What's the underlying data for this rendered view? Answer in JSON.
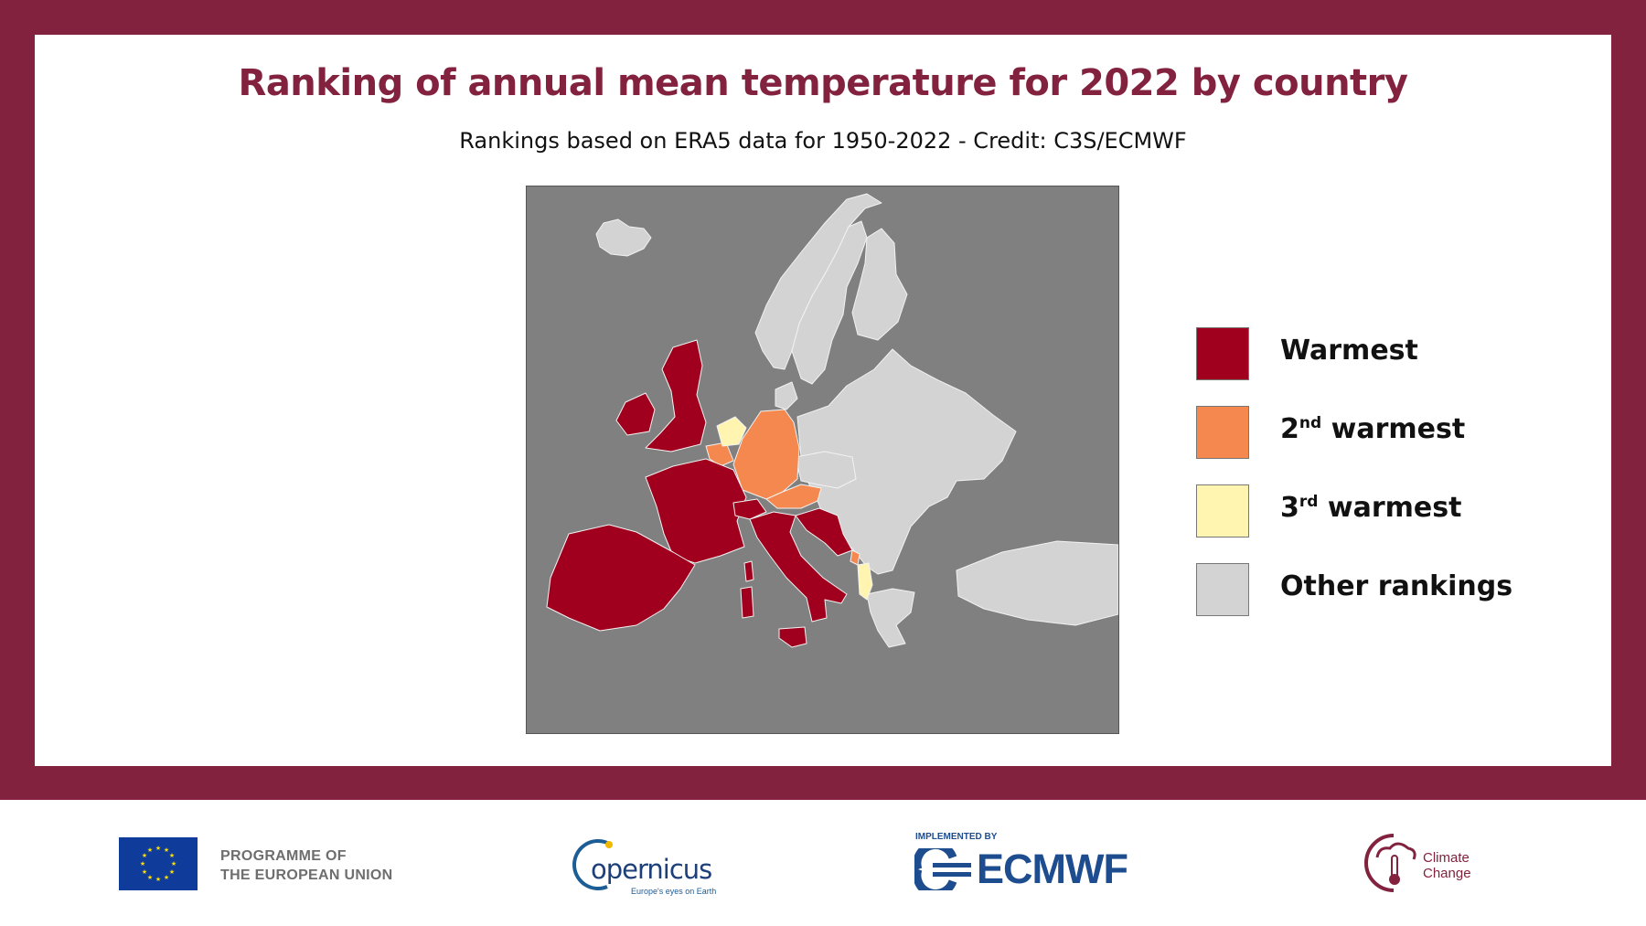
{
  "header": {
    "title": "Ranking of annual mean temperature for 2022 by country",
    "subtitle": "Rankings based on ERA5 data for 1950-2022 - Credit: C3S/ECMWF"
  },
  "map": {
    "region": "Europe",
    "sea_color": "#808080",
    "border_color": "#f2f2f2",
    "categories": {
      "warmest": {
        "color": "#a0001e",
        "countries": [
          "United Kingdom",
          "Ireland",
          "France",
          "Spain",
          "Portugal",
          "Italy",
          "Switzerland",
          "Slovenia",
          "Croatia",
          "Bosnia and Herzegovina",
          "Montenegro",
          "Luxembourg"
        ]
      },
      "second": {
        "color": "#f5884f",
        "countries": [
          "Germany",
          "Austria",
          "Belgium",
          "Montenegro coast"
        ]
      },
      "third": {
        "color": "#fff4b0",
        "countries": [
          "Netherlands",
          "Albania"
        ]
      },
      "other": {
        "color": "#d3d3d3",
        "countries": [
          "Iceland",
          "Norway",
          "Sweden",
          "Finland",
          "Denmark",
          "Poland",
          "Baltics",
          "Belarus",
          "Ukraine",
          "Czechia",
          "Slovakia",
          "Hungary",
          "Romania",
          "Serbia",
          "Bulgaria",
          "Greece",
          "North Macedonia",
          "Moldova",
          "Turkey"
        ]
      }
    }
  },
  "legend": {
    "items": [
      {
        "key": "warmest",
        "label": "Warmest",
        "color": "#a0001e",
        "ordinal": "",
        "sup": ""
      },
      {
        "key": "second",
        "label": "warmest",
        "color": "#f5884f",
        "ordinal": "2",
        "sup": "nd"
      },
      {
        "key": "third",
        "label": "warmest",
        "color": "#fff4b0",
        "ordinal": "3",
        "sup": "rd"
      },
      {
        "key": "other",
        "label": "Other rankings",
        "color": "#d3d3d3",
        "ordinal": "",
        "sup": ""
      }
    ]
  },
  "footer": {
    "eu_line1": "PROGRAMME OF",
    "eu_line2": "THE EUROPEAN UNION",
    "copernicus_word": "opernicus",
    "copernicus_tagline": "Europe's eyes on Earth",
    "ecmwf_implemented": "IMPLEMENTED BY",
    "ecmwf_word": "ECMWF",
    "cc_line1": "Climate",
    "cc_line2": "Change"
  },
  "colors": {
    "frame": "#82223e",
    "title": "#82223e",
    "eu_blue": "#0f3c9a",
    "eu_star": "#ffdd00",
    "ecmwf_blue": "#1d4d8f"
  }
}
